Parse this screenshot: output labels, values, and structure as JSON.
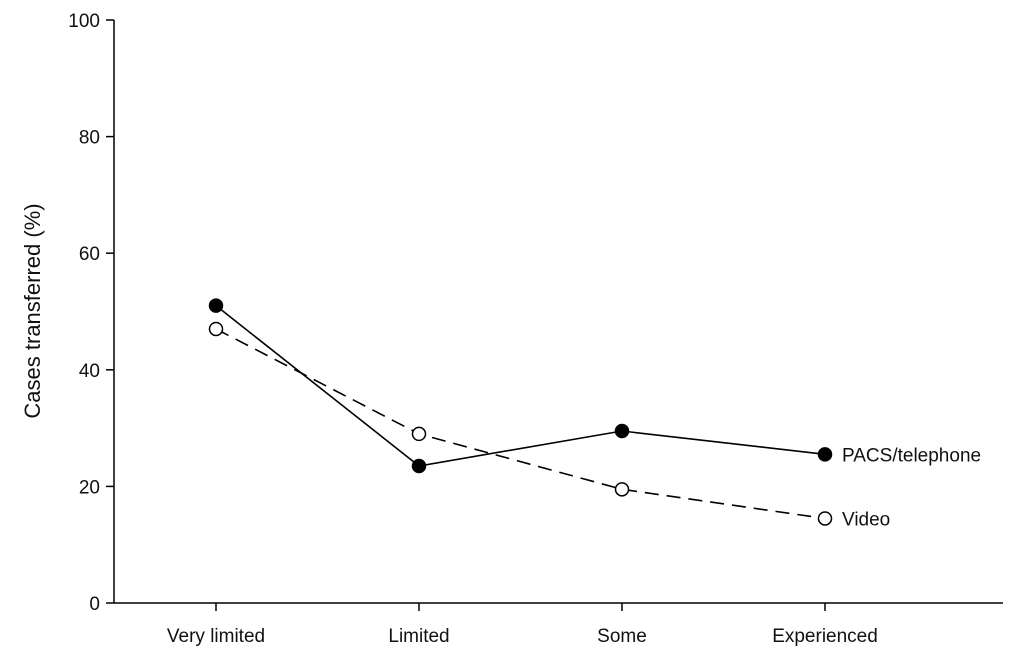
{
  "chart_data": {
    "type": "line",
    "categories": [
      "Very limited",
      "Limited",
      "Some",
      "Experienced"
    ],
    "ylabel": "Cases transferred (%)",
    "xlabel": "",
    "ylim": [
      0,
      100
    ],
    "yticks": [
      0,
      20,
      40,
      60,
      80,
      100
    ],
    "grid": false,
    "legend": "inline-right",
    "series": [
      {
        "name": "PACS/telephone",
        "values": [
          51,
          23.5,
          29.5,
          25.5
        ],
        "marker": "filled-circle",
        "line_style": "solid",
        "color": "#000000"
      },
      {
        "name": "Video",
        "values": [
          47,
          29,
          19.5,
          14.5
        ],
        "marker": "open-circle",
        "line_style": "dashed",
        "color": "#000000"
      }
    ]
  }
}
